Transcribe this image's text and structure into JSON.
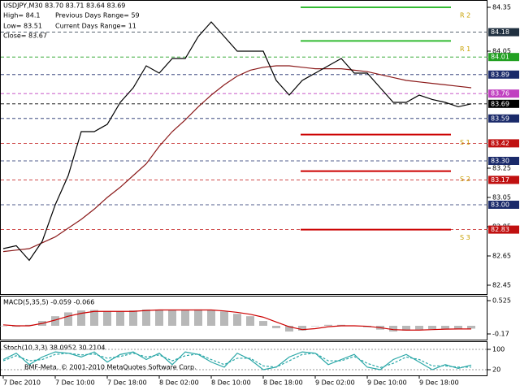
{
  "chart_data": [
    {
      "type": "line",
      "title": "USDJPY,M30  83.70 83.71 83.64 83.69",
      "annotations": [
        "High= 84.1",
        "Previous Days Range= 59",
        "Low= 83.51",
        "Current Days Range= 11",
        "Close= 83.67"
      ],
      "categories": [
        "7 Dec 2010",
        null,
        null,
        null,
        "7 Dec 10:00",
        null,
        null,
        null,
        "7 Dec 18:00",
        null,
        null,
        null,
        "8 Dec 02:00",
        null,
        null,
        null,
        "8 Dec 10:00",
        null,
        null,
        null,
        "8 Dec 18:00",
        null,
        null,
        null,
        "9 Dec 02:00",
        null,
        null,
        null,
        "9 Dec 10:00",
        null,
        null,
        null,
        "9 Dec 18:00",
        null,
        null,
        null,
        null
      ],
      "series": [
        {
          "color": "#000000",
          "values": [
            82.7,
            82.72,
            82.62,
            82.75,
            83.0,
            83.2,
            83.5,
            83.5,
            83.55,
            83.7,
            83.8,
            83.95,
            83.9,
            84.0,
            84.0,
            84.15,
            84.25,
            84.15,
            84.05,
            84.05,
            84.05,
            83.85,
            83.75,
            83.85,
            83.9,
            83.95,
            84.0,
            83.9,
            83.9,
            83.8,
            83.7,
            83.7,
            83.75,
            83.72,
            83.7,
            83.67,
            83.69
          ]
        },
        {
          "color": "#8b1a1a",
          "values": [
            82.68,
            82.69,
            82.7,
            82.74,
            82.78,
            82.84,
            82.9,
            82.97,
            83.05,
            83.12,
            83.2,
            83.28,
            83.4,
            83.5,
            83.58,
            83.67,
            83.75,
            83.82,
            83.88,
            83.92,
            83.94,
            83.95,
            83.95,
            83.94,
            83.93,
            83.93,
            83.93,
            83.92,
            83.91,
            83.89,
            83.87,
            83.85,
            83.84,
            83.83,
            83.82,
            83.81,
            83.8
          ]
        }
      ],
      "ylim": [
        82.45,
        84.35
      ],
      "yticks": [
        84.35,
        84.05,
        83.25,
        83.05,
        82.85,
        82.65,
        82.45
      ],
      "price_labels": [
        {
          "value": 84.18,
          "label": "84.18",
          "color": "#203040"
        },
        {
          "value": 84.01,
          "label": "84.01",
          "color": "#22a022"
        },
        {
          "value": 83.89,
          "label": "83.89",
          "color": "#1a2a6a"
        },
        {
          "value": 83.76,
          "label": "83.76",
          "color": "#c040c0"
        },
        {
          "value": 83.69,
          "label": "83.69",
          "color": "#000000"
        },
        {
          "value": 83.59,
          "label": "83.59",
          "color": "#1a2a6a"
        },
        {
          "value": 83.42,
          "label": "83.42",
          "color": "#c01010"
        },
        {
          "value": 83.3,
          "label": "83.30",
          "color": "#1a2a6a"
        },
        {
          "value": 83.17,
          "label": "83.17",
          "color": "#c01010"
        },
        {
          "value": 83.0,
          "label": "83.00",
          "color": "#1a2a6a"
        },
        {
          "value": 82.83,
          "label": "82.83",
          "color": "#c01010"
        }
      ],
      "levels": [
        {
          "value": 84.35,
          "label": "R 2",
          "color": "#33bb33"
        },
        {
          "value": 84.12,
          "label": "R 1",
          "color": "#33bb33"
        },
        {
          "value": 83.48,
          "label": "S 1",
          "color": "#cc0000"
        },
        {
          "value": 83.23,
          "label": "S 2",
          "color": "#cc0000"
        },
        {
          "value": 82.83,
          "label": "S 3",
          "color": "#cc0000"
        }
      ]
    },
    {
      "type": "bar",
      "title": "MACD(5,35,5) -0.059 -0.066",
      "series": [
        {
          "color": "#b8b8b8",
          "values": [
            0.0,
            -0.02,
            0.02,
            0.1,
            0.2,
            0.28,
            0.32,
            0.33,
            0.3,
            0.3,
            0.32,
            0.34,
            0.34,
            0.33,
            0.32,
            0.34,
            0.33,
            0.3,
            0.25,
            0.2,
            0.1,
            -0.05,
            -0.12,
            -0.1,
            0.0,
            0.02,
            0.02,
            0.0,
            -0.03,
            -0.08,
            -0.12,
            -0.1,
            -0.08,
            -0.07,
            -0.07,
            -0.06,
            -0.059
          ]
        },
        {
          "color": "#cc0000",
          "values": [
            0.02,
            0.0,
            0.0,
            0.05,
            0.12,
            0.2,
            0.26,
            0.3,
            0.3,
            0.3,
            0.3,
            0.32,
            0.33,
            0.33,
            0.33,
            0.33,
            0.33,
            0.31,
            0.28,
            0.24,
            0.18,
            0.08,
            -0.02,
            -0.08,
            -0.06,
            -0.02,
            0.0,
            0.0,
            -0.01,
            -0.04,
            -0.08,
            -0.09,
            -0.09,
            -0.08,
            -0.07,
            -0.066,
            -0.066
          ]
        }
      ],
      "ylim": [
        -0.17,
        0.525
      ],
      "yticks": [
        0.525,
        -0.17
      ]
    },
    {
      "type": "line",
      "title": "Stoch(10,3,3) 38.0952 30.2104",
      "series": [
        {
          "color": "#2aa7a7",
          "values": [
            60,
            85,
            40,
            70,
            90,
            85,
            70,
            90,
            50,
            80,
            90,
            60,
            85,
            40,
            90,
            80,
            50,
            30,
            85,
            60,
            20,
            30,
            70,
            90,
            85,
            40,
            60,
            80,
            30,
            20,
            60,
            80,
            50,
            20,
            40,
            25,
            38.0952
          ]
        },
        {
          "color": "#2aa7a7",
          "values": [
            55,
            75,
            55,
            60,
            80,
            85,
            78,
            82,
            65,
            72,
            85,
            70,
            78,
            55,
            75,
            82,
            60,
            40,
            65,
            65,
            35,
            30,
            55,
            80,
            85,
            55,
            55,
            72,
            45,
            28,
            45,
            70,
            60,
            35,
            35,
            30,
            30.2104
          ]
        }
      ],
      "ylim": [
        20,
        100
      ],
      "yticks": [
        100,
        20
      ]
    }
  ],
  "footer": "BMF-Meta, © 2001-2010 MetaQuotes Software Corp."
}
